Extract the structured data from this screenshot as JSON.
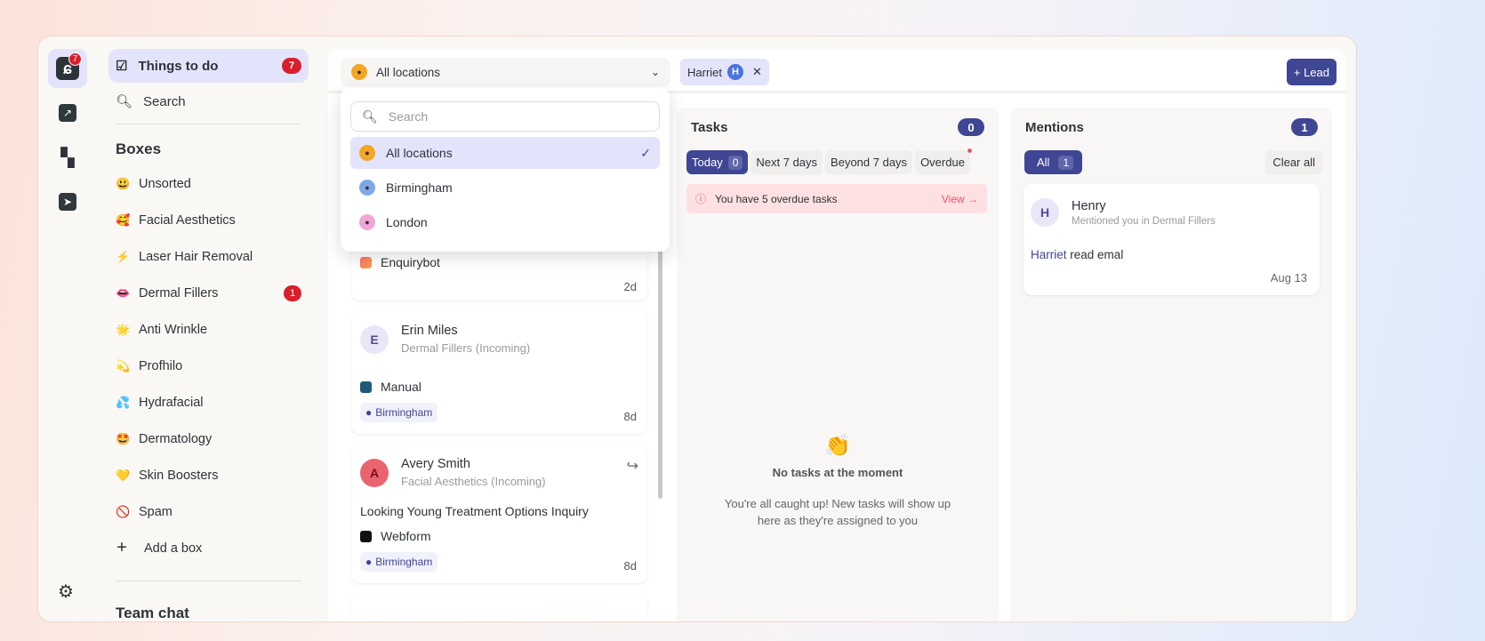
{
  "rail": {
    "logo_badge": "7"
  },
  "nav": {
    "things_to_do": "Things to do",
    "things_badge": "7",
    "search": "Search",
    "boxes_title": "Boxes",
    "boxes": [
      {
        "emoji": "😃",
        "label": "Unsorted"
      },
      {
        "emoji": "🥰",
        "label": "Facial Aesthetics"
      },
      {
        "emoji": "⚡",
        "label": "Laser Hair Removal"
      },
      {
        "emoji": "👄",
        "label": "Dermal Fillers",
        "badge": "1"
      },
      {
        "emoji": "🌟",
        "label": "Anti Wrinkle"
      },
      {
        "emoji": "💫",
        "label": "Profhilo"
      },
      {
        "emoji": "💦",
        "label": "Hydrafacial"
      },
      {
        "emoji": "🤩",
        "label": "Dermatology"
      },
      {
        "emoji": "💛",
        "label": "Skin Boosters"
      },
      {
        "emoji": "🚫",
        "label": "Spam"
      }
    ],
    "add_box": "Add a box",
    "team_chat": "Team chat"
  },
  "topbar": {
    "location": "All locations",
    "filter_user": "Harriet",
    "filter_user_initial": "H",
    "lead_button": "+ Lead"
  },
  "dropdown": {
    "search_placeholder": "Search",
    "options": [
      {
        "label": "All locations",
        "color": "#f5a623",
        "selected": true
      },
      {
        "label": "Birmingham",
        "color": "#7fa8e8"
      },
      {
        "label": "London",
        "color": "#f0a6d6"
      }
    ]
  },
  "leads": [
    {
      "source": "Enquirybot",
      "age": "2d"
    },
    {
      "initial": "E",
      "name": "Erin Miles",
      "box": "Dermal Fillers (Incoming)",
      "source": "Manual",
      "location": "Birmingham",
      "age": "8d"
    },
    {
      "initial": "A",
      "name": "Avery Smith",
      "box": "Facial Aesthetics (Incoming)",
      "subject": "Looking Young Treatment Options Inquiry",
      "source": "Webform",
      "location": "Birmingham",
      "age": "8d"
    }
  ],
  "tasks": {
    "title": "Tasks",
    "count": "0",
    "tabs": [
      {
        "label": "Today",
        "count": "0"
      },
      {
        "label": "Next 7 days"
      },
      {
        "label": "Beyond 7 days"
      },
      {
        "label": "Overdue"
      }
    ],
    "alert": "You have 5 overdue tasks",
    "alert_link": "View →",
    "empty_emoji": "👏",
    "empty_title": "No tasks at the moment",
    "empty_desc": "You're all caught up! New tasks will show up here as they're assigned to you"
  },
  "mentions": {
    "title": "Mentions",
    "count": "1",
    "tab_all": "All",
    "tab_all_count": "1",
    "clear_all": "Clear all",
    "items": [
      {
        "initial": "H",
        "name": "Henry",
        "context": "Mentioned you in Dermal Fillers",
        "mention": "Harriet",
        "text": "read emal",
        "date": "Aug 13"
      }
    ]
  },
  "colors": {
    "accent": "#3f4694",
    "badge": "#d81f2c",
    "active_bg": "#e3e4fb"
  }
}
